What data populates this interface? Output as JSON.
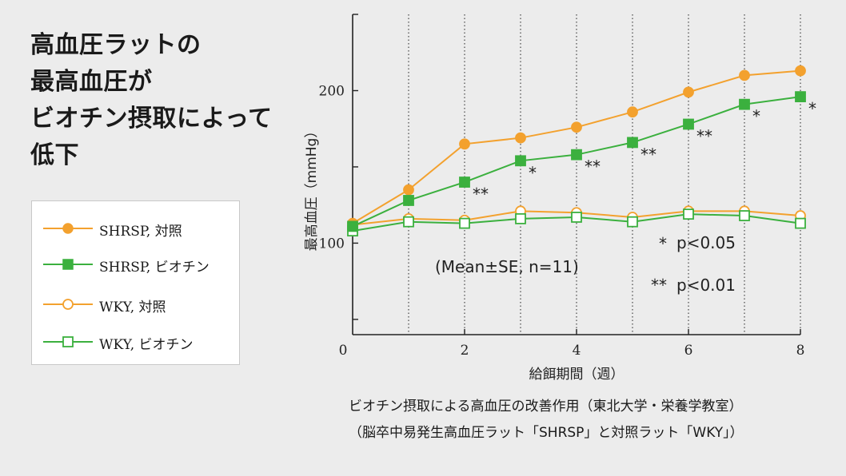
{
  "headline": [
    "高血圧ラットの",
    "最高血圧が",
    "ビオチン摂取によって",
    "低下"
  ],
  "legend": [
    {
      "label": "SHRSP, 対照",
      "color": "#f3a12e",
      "marker": "circle",
      "filled": true
    },
    {
      "label": "SHRSP, ビオチン",
      "color": "#3bb03e",
      "marker": "square",
      "filled": true
    },
    {
      "label": "WKY, 対照",
      "color": "#f3a12e",
      "marker": "circle",
      "filled": false
    },
    {
      "label": "WKY, ビオチン",
      "color": "#3bb03e",
      "marker": "square",
      "filled": false
    }
  ],
  "caption": {
    "line1": "ビオチン摂取による高血圧の改善作用（東北大学・栄養学教室）",
    "line2": "（脳卒中易発生高血圧ラット「SHRSP」と対照ラット「WKY」）"
  },
  "chart_data": {
    "type": "line",
    "xlabel": "給餌期間（週）",
    "ylabel": "最高血圧（mmHg）",
    "xlim": [
      0,
      8
    ],
    "ylim": [
      40,
      250
    ],
    "x_ticks": [
      0,
      2,
      4,
      6,
      8
    ],
    "y_ticks": [
      100,
      200
    ],
    "grid": "vertical dotted lines at each week",
    "annotation": "(Mean±SE, n=11)",
    "significance_legend": [
      {
        "symbol": "*",
        "text": "p<0.05"
      },
      {
        "symbol": "**",
        "text": "p<0.01"
      }
    ],
    "x": [
      0,
      1,
      2,
      3,
      4,
      5,
      6,
      7,
      8
    ],
    "series": [
      {
        "name": "SHRSP, 対照",
        "values": [
          113,
          135,
          165,
          169,
          176,
          186,
          199,
          210,
          213
        ]
      },
      {
        "name": "SHRSP, ビオチン",
        "values": [
          111,
          128,
          140,
          154,
          158,
          166,
          178,
          191,
          196
        ],
        "significance": [
          "",
          "",
          "**",
          "*",
          "**",
          "**",
          "**",
          "*",
          "*"
        ]
      },
      {
        "name": "WKY, 対照",
        "values": [
          112,
          116,
          115,
          121,
          120,
          117,
          121,
          121,
          118
        ]
      },
      {
        "name": "WKY, ビオチン",
        "values": [
          108,
          114,
          113,
          116,
          117,
          114,
          119,
          118,
          113
        ]
      }
    ]
  }
}
